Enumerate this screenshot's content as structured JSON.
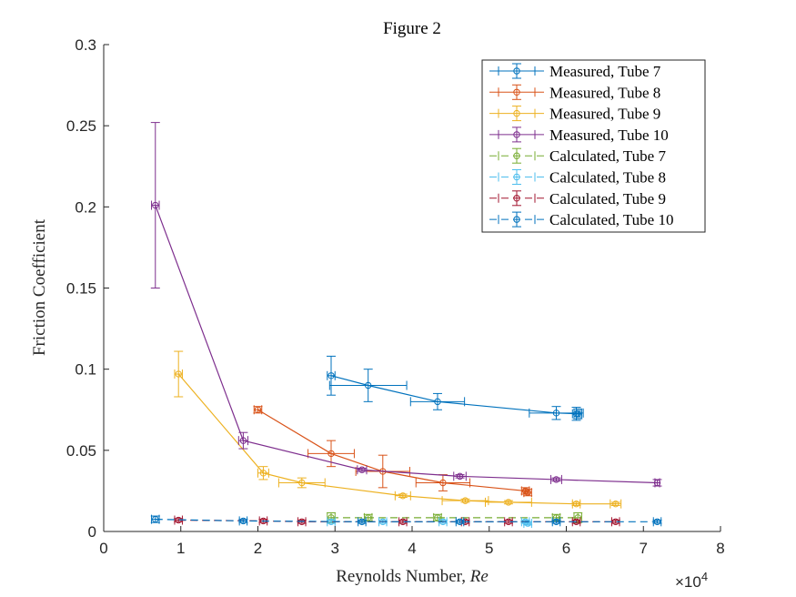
{
  "chart_data": {
    "type": "scatter",
    "title": "Figure 2",
    "xlabel_text": "Reynolds Number, ",
    "xlabel_symbol": "Re",
    "ylabel": "Friction Coefficient",
    "x_exponent_base": "×10",
    "x_exponent_power": "4",
    "xlim": [
      0,
      80000
    ],
    "ylim": [
      0,
      0.3
    ],
    "x_ticks": [
      0,
      10000,
      20000,
      30000,
      40000,
      50000,
      60000,
      70000,
      80000
    ],
    "x_tick_labels": [
      "0",
      "1",
      "2",
      "3",
      "4",
      "5",
      "6",
      "7",
      "8"
    ],
    "y_ticks": [
      0,
      0.05,
      0.1,
      0.15,
      0.2,
      0.25,
      0.3
    ],
    "y_tick_labels": [
      "0",
      "0.05",
      "0.1",
      "0.15",
      "0.2",
      "0.25",
      "0.3"
    ],
    "grid": false,
    "legend_position": "top-right",
    "series": [
      {
        "name": "Measured, Tube 7",
        "color": "#0072BD",
        "dashed": false,
        "points": [
          {
            "x": 29500,
            "y": 0.096,
            "xerr": 500,
            "yerr": 0.012
          },
          {
            "x": 34300,
            "y": 0.09,
            "xerr": 5000,
            "yerr": 0.01
          },
          {
            "x": 43300,
            "y": 0.08,
            "xerr": 3500,
            "yerr": 0.005
          },
          {
            "x": 58700,
            "y": 0.073,
            "xerr": 3500,
            "yerr": 0.004
          },
          {
            "x": 61300,
            "y": 0.0725,
            "xerr": 500,
            "yerr": 0.004
          },
          {
            "x": 61500,
            "y": 0.0725,
            "xerr": 500,
            "yerr": 0.003
          }
        ]
      },
      {
        "name": "Measured, Tube 8",
        "color": "#D95319",
        "dashed": false,
        "points": [
          {
            "x": 20000,
            "y": 0.075,
            "xerr": 500,
            "yerr": 0.002
          },
          {
            "x": 29500,
            "y": 0.048,
            "xerr": 3000,
            "yerr": 0.008
          },
          {
            "x": 36200,
            "y": 0.037,
            "xerr": 3500,
            "yerr": 0.01
          },
          {
            "x": 44000,
            "y": 0.03,
            "xerr": 3500,
            "yerr": 0.005
          },
          {
            "x": 54700,
            "y": 0.025,
            "xerr": 500,
            "yerr": 0.002
          },
          {
            "x": 55000,
            "y": 0.024,
            "xerr": 500,
            "yerr": 0.002
          }
        ]
      },
      {
        "name": "Measured, Tube 9",
        "color": "#EDB120",
        "dashed": false,
        "points": [
          {
            "x": 9700,
            "y": 0.097,
            "xerr": 500,
            "yerr": 0.014
          },
          {
            "x": 20700,
            "y": 0.036,
            "xerr": 700,
            "yerr": 0.004
          },
          {
            "x": 25700,
            "y": 0.03,
            "xerr": 3000,
            "yerr": 0.003
          },
          {
            "x": 38800,
            "y": 0.022,
            "xerr": 1000,
            "yerr": 0.001
          },
          {
            "x": 46900,
            "y": 0.019,
            "xerr": 3000,
            "yerr": 0.001
          },
          {
            "x": 52500,
            "y": 0.018,
            "xerr": 3000,
            "yerr": 0.001
          },
          {
            "x": 61300,
            "y": 0.017,
            "xerr": 500,
            "yerr": 0.001
          },
          {
            "x": 66400,
            "y": 0.017,
            "xerr": 700,
            "yerr": 0.001
          }
        ]
      },
      {
        "name": "Measured, Tube 10",
        "color": "#7E2F8E",
        "dashed": false,
        "points": [
          {
            "x": 6700,
            "y": 0.201,
            "xerr": 500,
            "yerr": 0.051
          },
          {
            "x": 18100,
            "y": 0.056,
            "xerr": 600,
            "yerr": 0.005
          },
          {
            "x": 33500,
            "y": 0.038,
            "xerr": 600,
            "yerr": 0.001
          },
          {
            "x": 46200,
            "y": 0.034,
            "xerr": 800,
            "yerr": 0.001
          },
          {
            "x": 58700,
            "y": 0.032,
            "xerr": 700,
            "yerr": 0.001
          },
          {
            "x": 71800,
            "y": 0.03,
            "xerr": 300,
            "yerr": 0.002
          }
        ]
      },
      {
        "name": "Calculated, Tube 7",
        "color": "#77AC30",
        "dashed": true,
        "points": [
          {
            "x": 29500,
            "y": 0.0085,
            "xerr": 500,
            "yerr": 0.003
          },
          {
            "x": 34300,
            "y": 0.0085,
            "xerr": 500,
            "yerr": 0.002
          },
          {
            "x": 43300,
            "y": 0.0085,
            "xerr": 500,
            "yerr": 0.002
          },
          {
            "x": 58700,
            "y": 0.0085,
            "xerr": 500,
            "yerr": 0.002
          },
          {
            "x": 61500,
            "y": 0.0085,
            "xerr": 500,
            "yerr": 0.003
          }
        ]
      },
      {
        "name": "Calculated, Tube 8",
        "color": "#4DBEEE",
        "dashed": true,
        "points": [
          {
            "x": 29500,
            "y": 0.006,
            "xerr": 500,
            "yerr": 0.001
          },
          {
            "x": 36200,
            "y": 0.006,
            "xerr": 500,
            "yerr": 0.001
          },
          {
            "x": 44000,
            "y": 0.006,
            "xerr": 500,
            "yerr": 0.001
          },
          {
            "x": 54700,
            "y": 0.006,
            "xerr": 500,
            "yerr": 0.001
          },
          {
            "x": 55000,
            "y": 0.005,
            "xerr": 500,
            "yerr": 0.001
          }
        ]
      },
      {
        "name": "Calculated, Tube 9",
        "color": "#A2142F",
        "dashed": true,
        "points": [
          {
            "x": 9700,
            "y": 0.007,
            "xerr": 500,
            "yerr": 0.001
          },
          {
            "x": 20700,
            "y": 0.0065,
            "xerr": 500,
            "yerr": 0.001
          },
          {
            "x": 25700,
            "y": 0.006,
            "xerr": 500,
            "yerr": 0.001
          },
          {
            "x": 38800,
            "y": 0.006,
            "xerr": 500,
            "yerr": 0.001
          },
          {
            "x": 46900,
            "y": 0.006,
            "xerr": 500,
            "yerr": 0.001
          },
          {
            "x": 52500,
            "y": 0.006,
            "xerr": 500,
            "yerr": 0.001
          },
          {
            "x": 61300,
            "y": 0.006,
            "xerr": 500,
            "yerr": 0.001
          },
          {
            "x": 66400,
            "y": 0.006,
            "xerr": 500,
            "yerr": 0.001
          }
        ]
      },
      {
        "name": "Calculated, Tube 10",
        "color": "#0072BD",
        "dashed": true,
        "points": [
          {
            "x": 6700,
            "y": 0.0075,
            "xerr": 500,
            "yerr": 0.002
          },
          {
            "x": 18100,
            "y": 0.0065,
            "xerr": 500,
            "yerr": 0.001
          },
          {
            "x": 33500,
            "y": 0.006,
            "xerr": 500,
            "yerr": 0.001
          },
          {
            "x": 46200,
            "y": 0.006,
            "xerr": 500,
            "yerr": 0.001
          },
          {
            "x": 58700,
            "y": 0.006,
            "xerr": 500,
            "yerr": 0.001
          },
          {
            "x": 71800,
            "y": 0.006,
            "xerr": 500,
            "yerr": 0.001
          }
        ]
      }
    ]
  }
}
